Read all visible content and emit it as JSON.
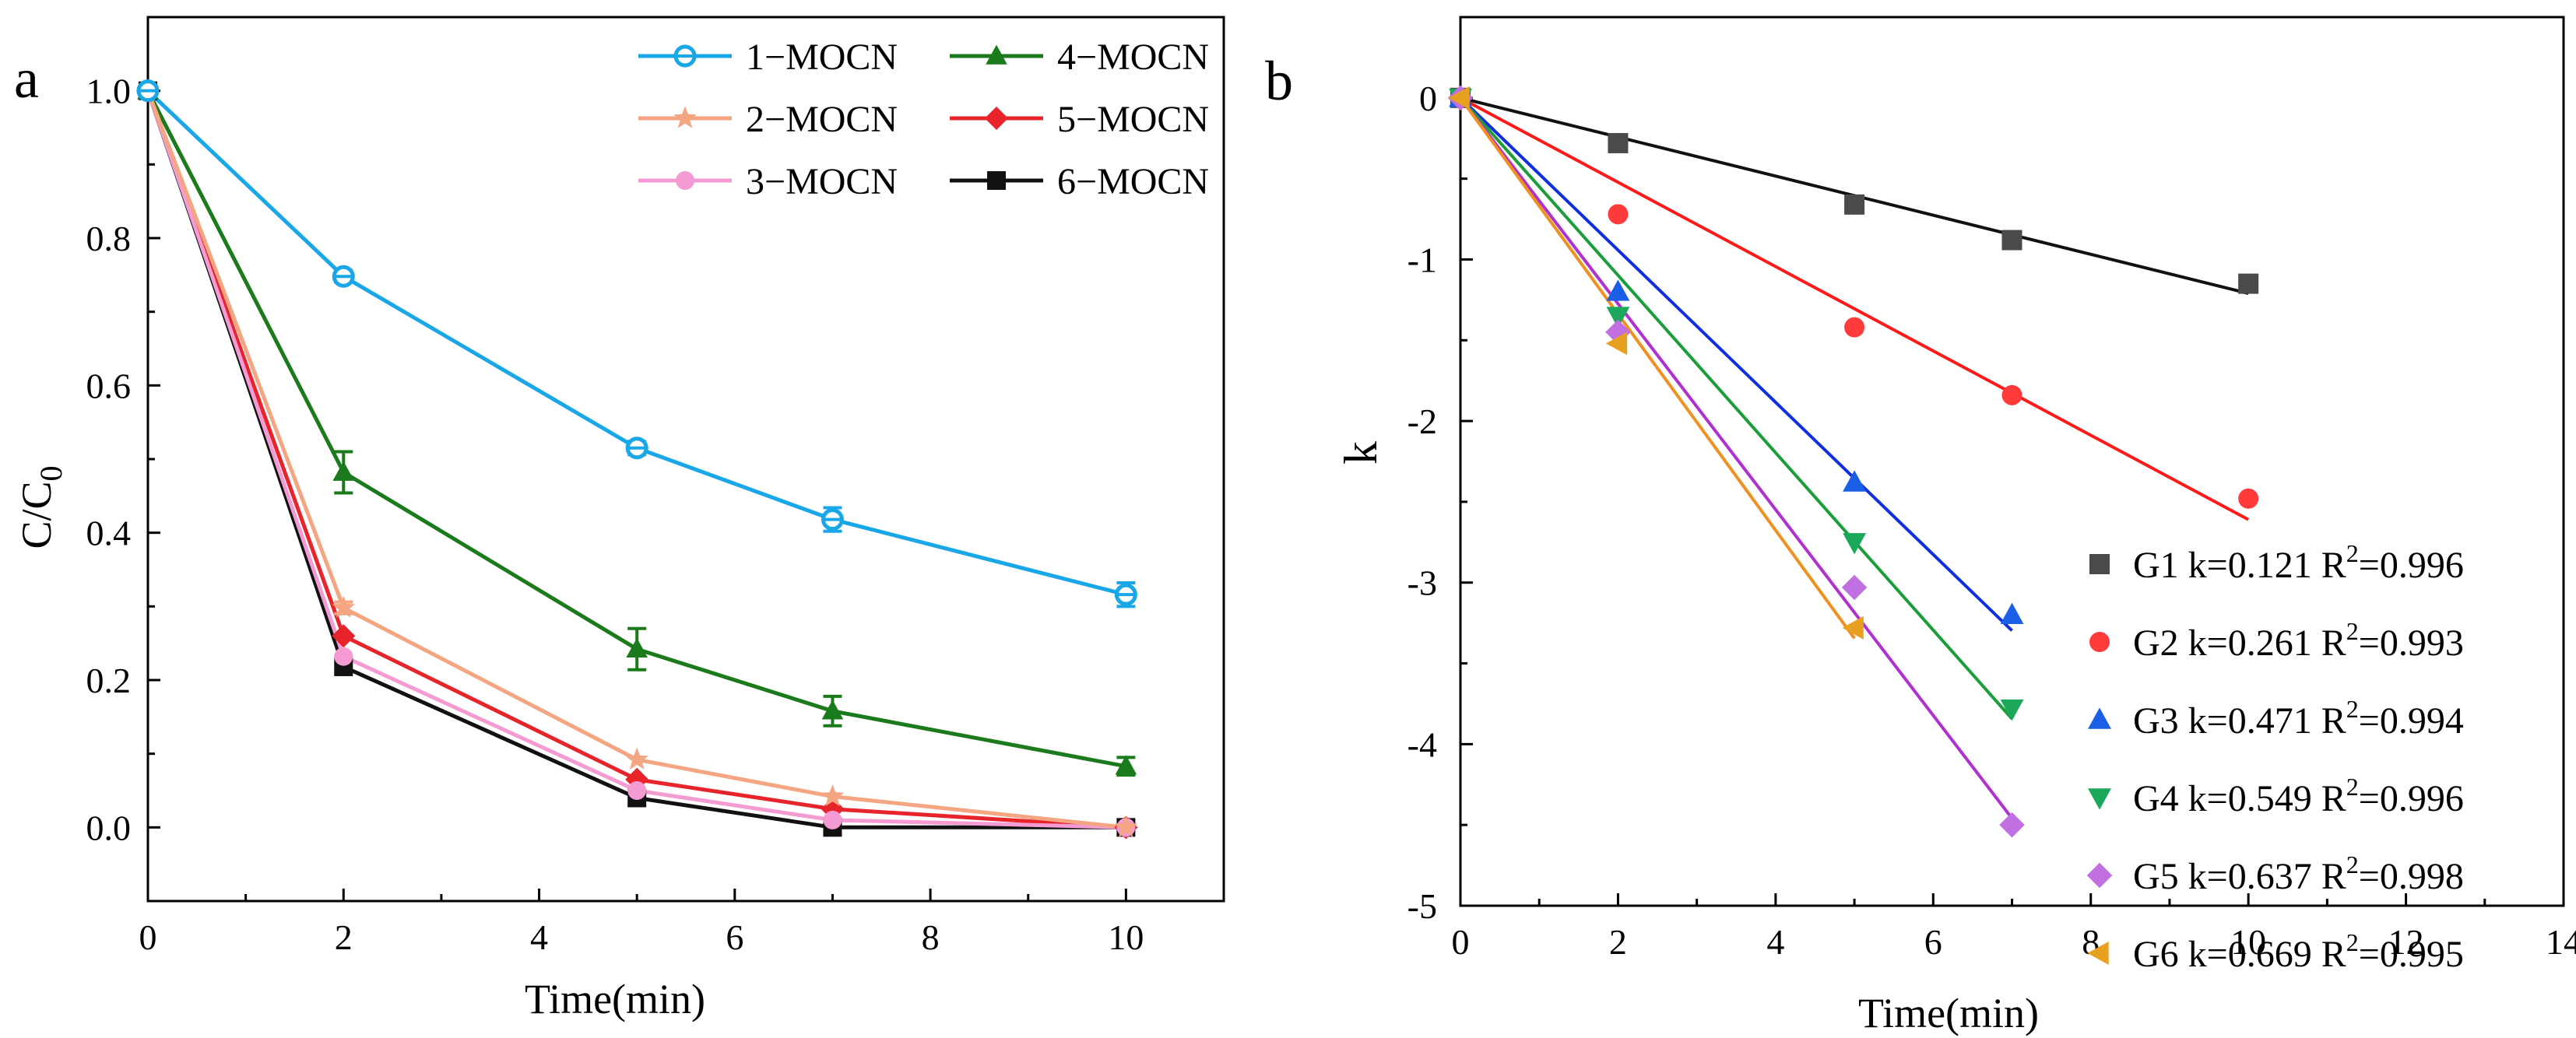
{
  "chart_data": [
    {
      "type": "line",
      "panel_label": "a",
      "xlabel": "Time(min)",
      "ylabel": "C/C",
      "ylabel_sub": "0",
      "xlim": [
        0,
        11
      ],
      "ylim": [
        -0.1,
        1.1
      ],
      "xticks": [
        0,
        2,
        4,
        6,
        8,
        10
      ],
      "xtick_labels": [
        "0",
        "2",
        "4",
        "6",
        "8",
        "10"
      ],
      "yticks": [
        0.0,
        0.2,
        0.4,
        0.6,
        0.8,
        1.0
      ],
      "ytick_labels": [
        "0.0",
        "0.2",
        "0.4",
        "0.6",
        "0.8",
        "1.0"
      ],
      "x": [
        0,
        2,
        5,
        7,
        10
      ],
      "series": [
        {
          "name": "1−MOCN",
          "color": "#1aa7e8",
          "marker": "circle-cross",
          "values": [
            1.0,
            0.748,
            0.515,
            0.418,
            0.316
          ],
          "errors": [
            0,
            0.008,
            0.009,
            0.016,
            0.016
          ]
        },
        {
          "name": "2−MOCN",
          "color": "#f4a582",
          "marker": "star",
          "values": [
            1.0,
            0.298,
            0.092,
            0.042,
            0.0
          ],
          "errors": [
            0,
            0.008,
            0,
            0,
            0
          ]
        },
        {
          "name": "3−MOCN",
          "color": "#f59bd3",
          "marker": "circle",
          "values": [
            1.0,
            0.232,
            0.05,
            0.01,
            0.0
          ],
          "errors": [
            0,
            0,
            0,
            0,
            0
          ]
        },
        {
          "name": "4−MOCN",
          "color": "#1b7a1b",
          "marker": "triangle-up",
          "values": [
            1.0,
            0.482,
            0.242,
            0.158,
            0.083
          ],
          "errors": [
            0,
            0.028,
            0.028,
            0.02,
            0.012
          ]
        },
        {
          "name": "5−MOCN",
          "color": "#e8242b",
          "marker": "diamond",
          "values": [
            1.0,
            0.26,
            0.065,
            0.025,
            0.0
          ],
          "errors": [
            0,
            0,
            0,
            0,
            0
          ]
        },
        {
          "name": "6−MOCN",
          "color": "#111111",
          "marker": "square",
          "values": [
            1.0,
            0.218,
            0.04,
            0.0,
            0.0
          ],
          "errors": [
            0,
            0,
            0,
            0,
            0
          ]
        }
      ]
    },
    {
      "type": "scatter",
      "panel_label": "b",
      "xlabel": "Time(min)",
      "ylabel": "k",
      "xlim": [
        0,
        14
      ],
      "ylim": [
        -5,
        0.5
      ],
      "xticks": [
        0,
        2,
        4,
        6,
        8,
        10,
        12,
        14
      ],
      "xtick_labels": [
        "0",
        "2",
        "4",
        "6",
        "8",
        "10",
        "12",
        "14"
      ],
      "yticks": [
        0,
        -1,
        -2,
        -3,
        -4,
        -5
      ],
      "ytick_labels": [
        "0",
        "-1",
        "-2",
        "-3",
        "-4",
        "-5"
      ],
      "series": [
        {
          "name": "G1",
          "k_text": "k=0.121",
          "r2_text": "R",
          "r2_sup": "2",
          "r2_value": "=0.996",
          "color": "#4a4a4a",
          "line_color": "#111111",
          "marker": "square",
          "x": [
            0,
            2,
            5,
            7,
            10
          ],
          "values": [
            0,
            -0.28,
            -0.66,
            -0.88,
            -1.15
          ],
          "fit_slope": -0.121,
          "fit_end": 10
        },
        {
          "name": "G2",
          "k_text": "k=0.261",
          "r2_text": "R",
          "r2_sup": "2",
          "r2_value": "=0.993",
          "color": "#ff3b3b",
          "line_color": "#ff1a1a",
          "marker": "circle",
          "x": [
            0,
            2,
            5,
            7,
            10
          ],
          "values": [
            0,
            -0.72,
            -1.42,
            -1.84,
            -2.48
          ],
          "fit_slope": -0.261,
          "fit_end": 10
        },
        {
          "name": "G3",
          "k_text": "k=0.471",
          "r2_text": "R",
          "r2_sup": "2",
          "r2_value": "=0.994",
          "color": "#1a5fe6",
          "line_color": "#1030e0",
          "marker": "triangle-up",
          "x": [
            0,
            2,
            5,
            7
          ],
          "values": [
            0,
            -1.2,
            -2.38,
            -3.2
          ],
          "fit_slope": -0.471,
          "fit_end": 7
        },
        {
          "name": "G4",
          "k_text": "k=0.549",
          "r2_text": "R",
          "r2_sup": "2",
          "r2_value": "=0.996",
          "color": "#1ba85a",
          "line_color": "#1a9e3a",
          "marker": "triangle-down",
          "x": [
            0,
            2,
            5,
            7
          ],
          "values": [
            0,
            -1.35,
            -2.75,
            -3.78
          ],
          "fit_slope": -0.549,
          "fit_end": 7
        },
        {
          "name": "G5",
          "k_text": "k=0.637",
          "r2_text": "R",
          "r2_sup": "2",
          "r2_value": "=0.998",
          "color": "#c070e0",
          "line_color": "#b030d0",
          "marker": "diamond",
          "x": [
            0,
            2,
            5,
            7
          ],
          "values": [
            0,
            -1.45,
            -3.03,
            -4.5
          ],
          "fit_slope": -0.637,
          "fit_end": 7
        },
        {
          "name": "G6",
          "k_text": "k=0.669",
          "r2_text": "R",
          "r2_sup": "2",
          "r2_value": "=0.995",
          "color": "#e8a020",
          "line_color": "#f09020",
          "marker": "triangle-left",
          "x": [
            0,
            2,
            5
          ],
          "values": [
            0,
            -1.52,
            -3.28
          ],
          "fit_slope": -0.669,
          "fit_end": 5
        }
      ]
    }
  ]
}
